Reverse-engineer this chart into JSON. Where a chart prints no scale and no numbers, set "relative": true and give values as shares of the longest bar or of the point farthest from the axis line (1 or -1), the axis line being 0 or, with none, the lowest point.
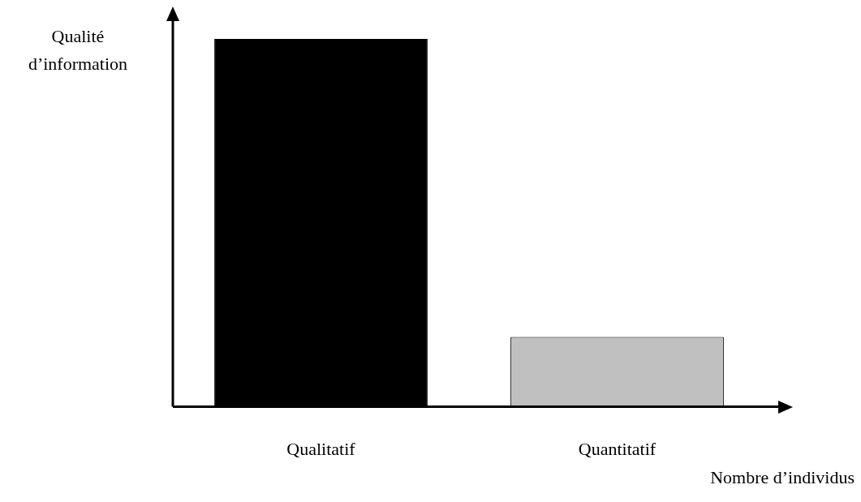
{
  "chart_data": {
    "type": "bar",
    "relative": true,
    "xlabel": "Nombre d’individus",
    "ylabel": "Qualité d’information",
    "categories": [
      "Qualitatif",
      "Quantitatif"
    ],
    "values": [
      1,
      0.19
    ],
    "colors": [
      "#000000",
      "#c0c0c0"
    ],
    "grid": false,
    "legend": false
  }
}
